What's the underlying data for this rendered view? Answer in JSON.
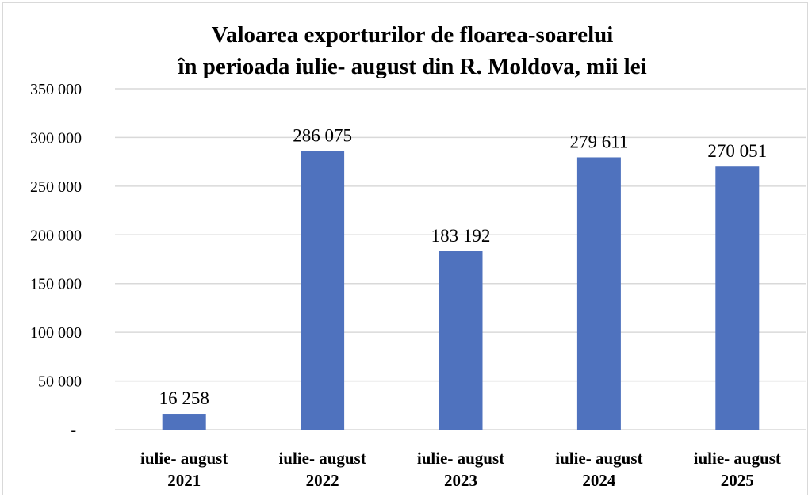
{
  "chart_data": {
    "type": "bar",
    "title": [
      "Valoarea exporturilor de floarea-soarelui",
      "în perioada iulie- august din R. Moldova, mii lei"
    ],
    "categories": [
      [
        "iulie- august",
        "2021"
      ],
      [
        "iulie- august",
        "2022"
      ],
      [
        "iulie- august",
        "2023"
      ],
      [
        "iulie- august",
        "2024"
      ],
      [
        "iulie- august",
        "2025"
      ]
    ],
    "values": [
      16258,
      286075,
      183192,
      279611,
      270051
    ],
    "data_labels": [
      "16 258",
      "286 075",
      "183 192",
      "279 611",
      "270 051"
    ],
    "ylim": [
      0,
      350000
    ],
    "yticks": [
      0,
      50000,
      100000,
      150000,
      200000,
      250000,
      300000,
      350000
    ],
    "ytick_labels": [
      "-",
      "50 000",
      "100 000",
      "150 000",
      "200 000",
      "250 000",
      "300 000",
      "350 000"
    ],
    "xlabel": "",
    "ylabel": "",
    "grid": true,
    "legend": "none",
    "bar_color": "#4f72be"
  }
}
